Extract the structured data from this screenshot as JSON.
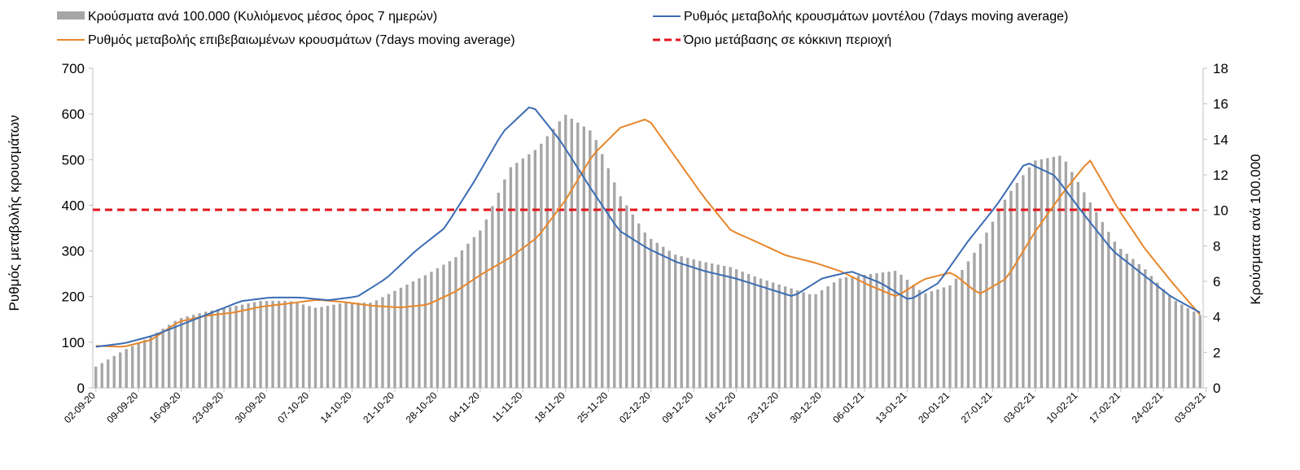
{
  "chart_data": {
    "type": "bar+line",
    "legend": [
      {
        "key": "cases",
        "label": "Κρούσματα ανά 100.000 (Κυλιόμενος μέσος όρος 7 ημερών)",
        "marker": "bar",
        "color": "#a6a6a6"
      },
      {
        "key": "model",
        "label": "Ρυθμός μεταβολής κρουσμάτων μοντέλου (7days moving average)",
        "marker": "line",
        "color": "#3b6cb4"
      },
      {
        "key": "confirmed",
        "label": "Ρυθμός μεταβολής επιβεβαιωμένων κρουσμάτων (7days moving average)",
        "marker": "line",
        "color": "#e8862a"
      },
      {
        "key": "threshold",
        "label": "Όριο μετάβασης σε κόκκινη περιοχή",
        "marker": "dashed",
        "color": "#e3151a"
      }
    ],
    "ylabel_left": "Ρυθμός μεταβολής κρουσμάτων",
    "ylabel_right": "Κρούσματα ανά 100.000",
    "y_left_range": [
      0,
      700
    ],
    "y_left_ticks": [
      "0",
      "100",
      "200",
      "300",
      "400",
      "500",
      "600",
      "700"
    ],
    "y_right_range": [
      0,
      18
    ],
    "y_right_ticks": [
      "0",
      "2",
      "4",
      "6",
      "8",
      "10",
      "12",
      "14",
      "16",
      "18"
    ],
    "x_start_date": "02-09-20",
    "x_tick_labels": [
      "02-09-20",
      "09-09-20",
      "16-09-20",
      "23-09-20",
      "30-09-20",
      "07-10-20",
      "14-10-20",
      "21-10-20",
      "28-10-20",
      "04-11-20",
      "11-11-20",
      "18-11-20",
      "25-11-20",
      "02-12-20",
      "09-12-20",
      "16-12-20",
      "23-12-20",
      "30-12-20",
      "06-01-21",
      "13-01-21",
      "20-01-21",
      "27-01-21",
      "03-02-21",
      "10-02-21",
      "17-02-21",
      "24-02-21",
      "03-03-21"
    ],
    "threshold_left": 390,
    "cases_per_100k_weekly": [
      1.2,
      2.1,
      2.9,
      3.9,
      4.3,
      4.6,
      4.9,
      4.9,
      4.5,
      4.8,
      4.8,
      5.6,
      6.4,
      7.3,
      9.0,
      12.4,
      13.5,
      15.4,
      14.4,
      10.8,
      8.5,
      7.5,
      7.1,
      6.8,
      6.2,
      5.7,
      5.2,
      6.2,
      6.4,
      6.6,
      5.3,
      5.8,
      8.0,
      10.8,
      12.8,
      13.1,
      10.5,
      8.0,
      6.7,
      5.0,
      4.1
    ],
    "confirmed_rate_weekly": [
      92,
      90,
      105,
      145,
      158,
      165,
      178,
      185,
      193,
      188,
      180,
      176,
      182,
      210,
      250,
      285,
      330,
      410,
      510,
      570,
      590,
      505,
      420,
      345,
      318,
      290,
      275,
      255,
      225,
      200,
      238,
      253,
      205,
      240,
      340,
      425,
      500,
      395,
      305,
      230,
      160
    ],
    "model_rate_weekly": [
      90,
      98,
      115,
      140,
      165,
      190,
      198,
      198,
      192,
      200,
      240,
      300,
      350,
      450,
      560,
      620,
      540,
      440,
      345,
      305,
      275,
      255,
      240,
      220,
      200,
      240,
      255,
      230,
      192,
      230,
      320,
      400,
      495,
      465,
      380,
      300,
      250,
      200,
      165
    ]
  }
}
